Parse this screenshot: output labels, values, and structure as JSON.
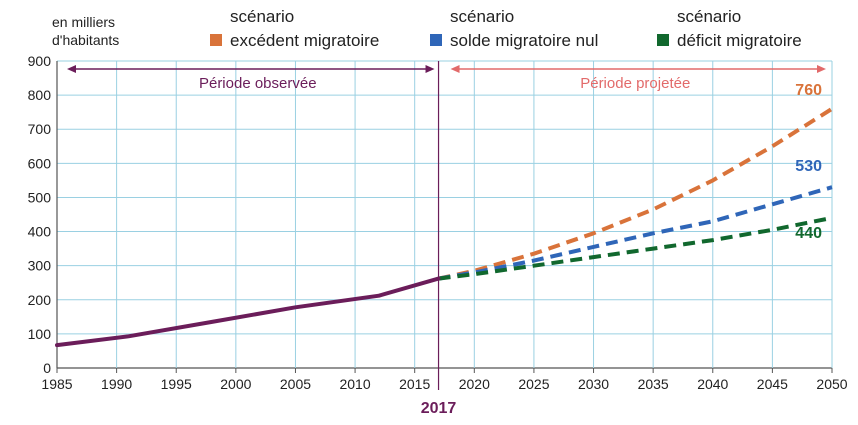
{
  "chart_data": {
    "type": "line",
    "ylabel": "en milliers\nd'habitants",
    "xlim": [
      1985,
      2050
    ],
    "ylim": [
      0,
      900
    ],
    "x_ticks": [
      1985,
      1990,
      1995,
      2000,
      2005,
      2010,
      2015,
      2020,
      2025,
      2030,
      2035,
      2040,
      2045,
      2050
    ],
    "y_ticks": [
      0,
      100,
      200,
      300,
      400,
      500,
      600,
      700,
      800,
      900
    ],
    "grid": true,
    "split_year": 2017,
    "split_label": "2017",
    "periods": {
      "observed": {
        "label": "Période observée",
        "from": 1985,
        "to": 2017,
        "color": "#6b1d5a"
      },
      "projected": {
        "label": "Période projetée",
        "from": 2017,
        "to": 2050,
        "color": "#e26a6a"
      }
    },
    "legend": {
      "placement": "top",
      "entries": [
        {
          "prefix": "scénario",
          "name": "excédent migratoire",
          "color": "#d9733a"
        },
        {
          "prefix": "scénario",
          "name": "solde migratoire nul",
          "color": "#2f66b8"
        },
        {
          "prefix": "scénario",
          "name": "déficit migratoire",
          "color": "#11682e"
        }
      ]
    },
    "observed": {
      "color": "#6b1d5a",
      "x": [
        1985,
        1991,
        1998,
        2005,
        2012,
        2017
      ],
      "y": [
        67,
        93,
        135,
        178,
        212,
        262
      ]
    },
    "series": [
      {
        "key": "excedent",
        "color": "#d9733a",
        "x": [
          2017,
          2020,
          2025,
          2030,
          2035,
          2040,
          2045,
          2050
        ],
        "y": [
          262,
          285,
          335,
          395,
          465,
          550,
          650,
          760
        ],
        "end_label": "760"
      },
      {
        "key": "nul",
        "color": "#2f66b8",
        "x": [
          2017,
          2020,
          2025,
          2030,
          2035,
          2040,
          2045,
          2050
        ],
        "y": [
          262,
          280,
          315,
          355,
          395,
          430,
          480,
          530
        ],
        "end_label": "530"
      },
      {
        "key": "deficit",
        "color": "#11682e",
        "x": [
          2017,
          2020,
          2025,
          2030,
          2035,
          2040,
          2045,
          2050
        ],
        "y": [
          262,
          275,
          300,
          325,
          350,
          375,
          405,
          440
        ],
        "end_label": "440"
      }
    ]
  }
}
